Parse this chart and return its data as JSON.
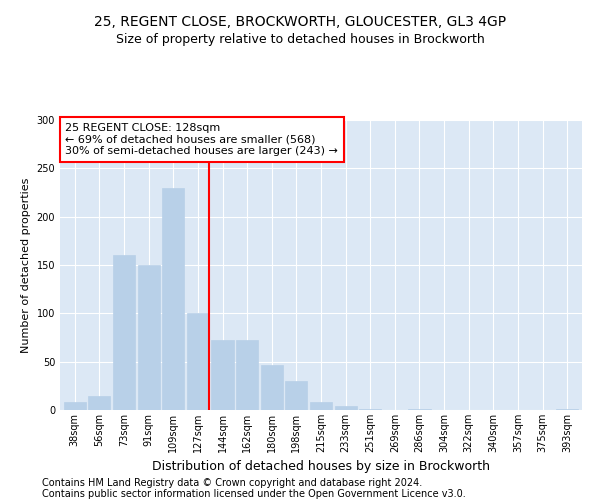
{
  "title1": "25, REGENT CLOSE, BROCKWORTH, GLOUCESTER, GL3 4GP",
  "title2": "Size of property relative to detached houses in Brockworth",
  "xlabel": "Distribution of detached houses by size in Brockworth",
  "ylabel": "Number of detached properties",
  "bar_labels": [
    "38sqm",
    "56sqm",
    "73sqm",
    "91sqm",
    "109sqm",
    "127sqm",
    "144sqm",
    "162sqm",
    "180sqm",
    "198sqm",
    "215sqm",
    "233sqm",
    "251sqm",
    "269sqm",
    "286sqm",
    "304sqm",
    "322sqm",
    "340sqm",
    "357sqm",
    "375sqm",
    "393sqm"
  ],
  "bar_values": [
    8,
    15,
    160,
    150,
    230,
    100,
    72,
    72,
    47,
    30,
    8,
    4,
    1,
    0,
    1,
    0,
    0,
    0,
    0,
    0,
    1
  ],
  "bar_color": "#b8d0e8",
  "bar_edgecolor": "#b8d0e8",
  "vline_color": "red",
  "annotation_line1": "25 REGENT CLOSE: 128sqm",
  "annotation_line2": "← 69% of detached houses are smaller (568)",
  "annotation_line3": "30% of semi-detached houses are larger (243) →",
  "annotation_box_color": "white",
  "annotation_edgecolor": "red",
  "ylim": [
    0,
    300
  ],
  "yticks": [
    0,
    50,
    100,
    150,
    200,
    250,
    300
  ],
  "axes_background": "#dce8f5",
  "grid_color": "white",
  "footer1": "Contains HM Land Registry data © Crown copyright and database right 2024.",
  "footer2": "Contains public sector information licensed under the Open Government Licence v3.0.",
  "title_fontsize": 10,
  "subtitle_fontsize": 9,
  "xlabel_fontsize": 9,
  "ylabel_fontsize": 8,
  "tick_fontsize": 7,
  "annotation_fontsize": 8,
  "footer_fontsize": 7
}
